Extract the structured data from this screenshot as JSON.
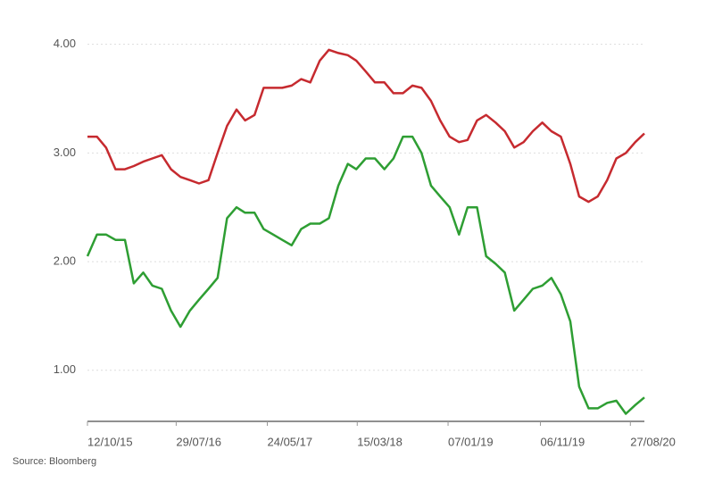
{
  "chart_data": {
    "type": "line",
    "source": "Source: Bloomberg",
    "x": [
      "12/10/15",
      "12/11/15",
      "12/12/15",
      "12/01/16",
      "12/02/16",
      "12/03/16",
      "12/04/16",
      "12/05/16",
      "12/06/16",
      "12/07/16",
      "12/08/16",
      "12/09/16",
      "12/10/16",
      "12/11/16",
      "12/12/16",
      "12/01/17",
      "12/02/17",
      "12/03/17",
      "12/04/17",
      "12/05/17",
      "12/06/17",
      "12/07/17",
      "12/08/17",
      "12/09/17",
      "12/10/17",
      "12/11/17",
      "12/12/17",
      "12/01/18",
      "12/02/18",
      "12/03/18",
      "12/04/18",
      "12/05/18",
      "12/06/18",
      "12/07/18",
      "12/08/18",
      "12/09/18",
      "12/10/18",
      "12/11/18",
      "12/12/18",
      "12/01/19",
      "12/02/19",
      "12/03/19",
      "12/04/19",
      "12/05/19",
      "12/06/19",
      "12/07/19",
      "12/08/19",
      "12/09/19",
      "12/10/19",
      "12/11/19",
      "12/12/19",
      "12/01/20",
      "12/02/20",
      "12/03/20",
      "12/04/20",
      "12/05/20",
      "12/06/20",
      "12/07/20",
      "12/08/20",
      "12/09/20",
      "12/10/20"
    ],
    "series": [
      {
        "color": "#c62a2f",
        "values": [
          3.15,
          3.15,
          3.05,
          2.85,
          2.85,
          2.88,
          2.92,
          2.95,
          2.98,
          2.85,
          2.78,
          2.75,
          2.72,
          2.75,
          3.0,
          3.25,
          3.4,
          3.3,
          3.35,
          3.6,
          3.6,
          3.6,
          3.62,
          3.68,
          3.65,
          3.85,
          3.95,
          3.92,
          3.9,
          3.85,
          3.75,
          3.65,
          3.65,
          3.55,
          3.55,
          3.62,
          3.6,
          3.48,
          3.3,
          3.15,
          3.1,
          3.12,
          3.3,
          3.35,
          3.28,
          3.2,
          3.05,
          3.1,
          3.2,
          3.28,
          3.2,
          3.15,
          2.9,
          2.6,
          2.55,
          2.6,
          2.75,
          2.95,
          3.0,
          3.1,
          3.18
        ]
      },
      {
        "color": "#2e9e33",
        "values": [
          2.05,
          2.25,
          2.25,
          2.2,
          2.2,
          1.8,
          1.9,
          1.78,
          1.75,
          1.55,
          1.4,
          1.55,
          1.65,
          1.75,
          1.85,
          2.4,
          2.5,
          2.45,
          2.45,
          2.3,
          2.25,
          2.2,
          2.15,
          2.3,
          2.35,
          2.35,
          2.4,
          2.7,
          2.9,
          2.85,
          2.95,
          2.95,
          2.85,
          2.95,
          3.15,
          3.15,
          3.0,
          2.7,
          2.6,
          2.5,
          2.25,
          2.5,
          2.5,
          2.05,
          1.98,
          1.9,
          1.55,
          1.65,
          1.75,
          1.78,
          1.85,
          1.7,
          1.45,
          0.85,
          0.65,
          0.65,
          0.7,
          0.72,
          0.6,
          0.68,
          0.75
        ]
      }
    ],
    "xlim": [
      "12/10/15",
      "12/10/20"
    ],
    "xticks": [
      "12/10/15",
      "29/07/16",
      "24/05/17",
      "15/03/18",
      "07/01/19",
      "06/11/19",
      "27/08/20"
    ],
    "ylim": [
      0.53,
      4.1
    ],
    "yticks": [
      {
        "value": 1,
        "label": "1.00"
      },
      {
        "value": 2,
        "label": "2.00"
      },
      {
        "value": 3,
        "label": "3.00"
      },
      {
        "value": 4,
        "label": "4.00"
      }
    ],
    "grid": true
  }
}
